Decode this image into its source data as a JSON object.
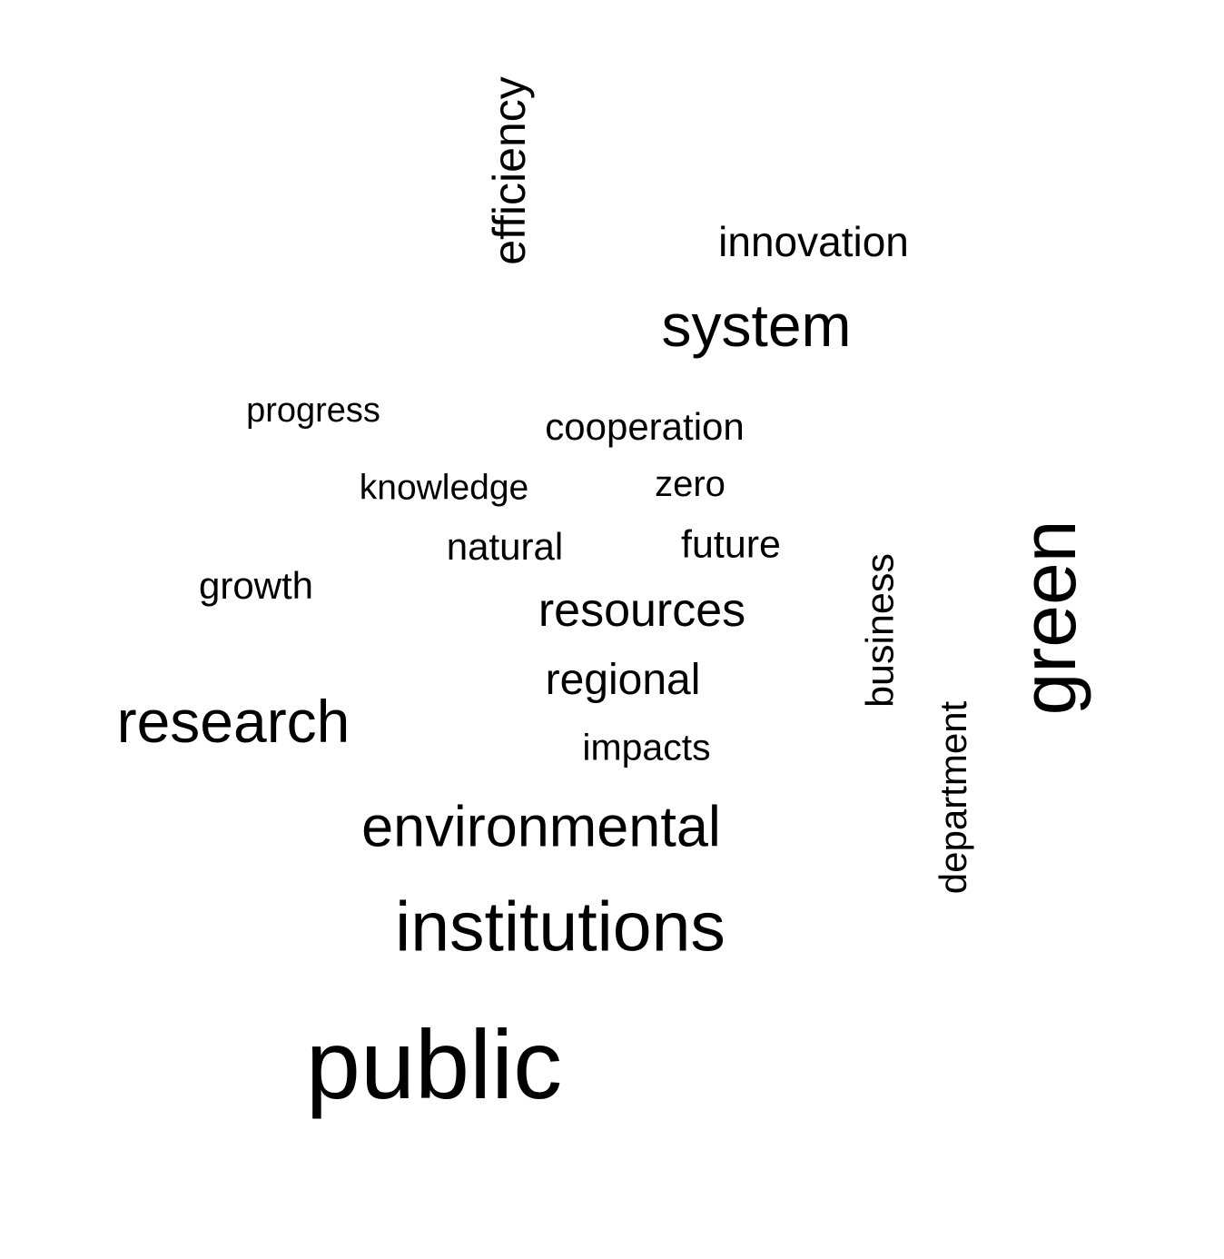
{
  "word_cloud": {
    "text_color": "#000000",
    "background_color": "#ffffff",
    "words": {
      "efficiency": "efficiency",
      "innovation": "innovation",
      "system": "system",
      "progress": "progress",
      "cooperation": "cooperation",
      "knowledge": "knowledge",
      "zero": "zero",
      "natural": "natural",
      "future": "future",
      "growth": "growth",
      "resources": "resources",
      "business": "business",
      "green": "green",
      "regional": "regional",
      "research": "research",
      "impacts": "impacts",
      "department": "department",
      "environmental": "environmental",
      "institutions": "institutions",
      "public": "public"
    }
  }
}
